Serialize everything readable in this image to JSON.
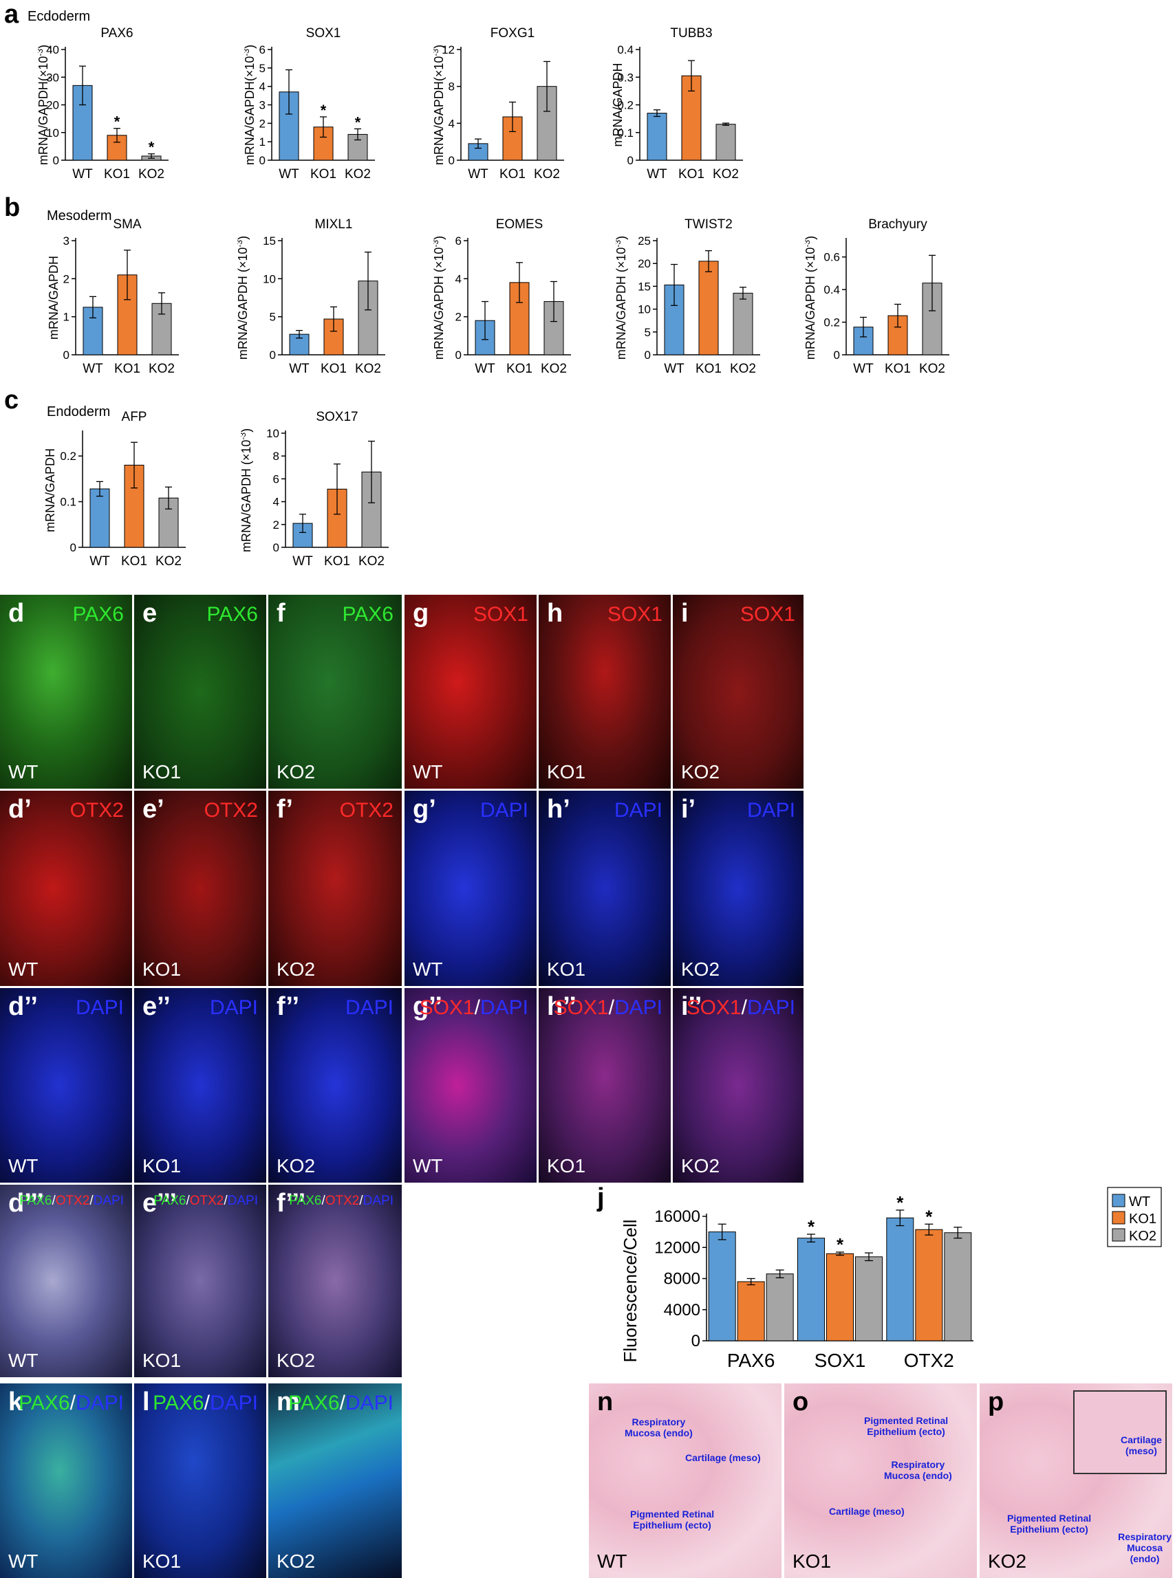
{
  "colors": {
    "WT": "#5b9bd5",
    "KO1": "#ed7d31",
    "KO2": "#a5a5a5",
    "green": "#2ee830",
    "red": "#ff2a2a",
    "blue": "#2a30ff",
    "annotation": "#1a22d8"
  },
  "sections": {
    "a": {
      "letter": "a",
      "germ": "Ecdoderm"
    },
    "b": {
      "letter": "b",
      "germ": "Mesoderm"
    },
    "c": {
      "letter": "c",
      "germ": "Endoderm"
    }
  },
  "chart_data": [
    {
      "id": "PAX6",
      "type": "bar",
      "title": "PAX6",
      "ylabel": "mRNA/GAPDH(×10",
      "yexp": "-3",
      "ylabel_end": ")",
      "categories": [
        "WT",
        "KO1",
        "KO2"
      ],
      "values": [
        27,
        9,
        1.5
      ],
      "errors": [
        7,
        2.5,
        0.8
      ],
      "significance": [
        "",
        "*",
        "*"
      ],
      "ylim": [
        0,
        40
      ],
      "yticks": [
        "0",
        "10",
        "20",
        "30",
        "40"
      ]
    },
    {
      "id": "SOX1",
      "type": "bar",
      "title": "SOX1",
      "ylabel": "mRNA/GAPDH(×10",
      "yexp": "-3",
      "ylabel_end": ")",
      "categories": [
        "WT",
        "KO1",
        "KO2"
      ],
      "values": [
        3.7,
        1.8,
        1.4
      ],
      "errors": [
        1.2,
        0.55,
        0.3
      ],
      "significance": [
        "",
        "*",
        "*"
      ],
      "ylim": [
        0,
        6
      ],
      "yticks": [
        "0",
        "1",
        "2",
        "3",
        "4",
        "5",
        "6"
      ]
    },
    {
      "id": "FOXG1",
      "type": "bar",
      "title": "FOXG1",
      "ylabel": "mRNA/GAPDH(×10",
      "yexp": "-3",
      "ylabel_end": ")",
      "categories": [
        "WT",
        "KO1",
        "KO2"
      ],
      "values": [
        1.8,
        4.7,
        8
      ],
      "errors": [
        0.5,
        1.6,
        2.7
      ],
      "significance": [
        "",
        "",
        ""
      ],
      "ylim": [
        0,
        12
      ],
      "yticks": [
        "0",
        "4",
        "8",
        "12"
      ]
    },
    {
      "id": "TUBB3",
      "type": "bar",
      "title": "TUBB3",
      "ylabel": "mRNA/GAPDH",
      "yexp": "",
      "ylabel_end": "",
      "categories": [
        "WT",
        "KO1",
        "KO2"
      ],
      "values": [
        0.17,
        0.305,
        0.13
      ],
      "errors": [
        0.012,
        0.055,
        0.004
      ],
      "significance": [
        "",
        "",
        ""
      ],
      "ylim": [
        0,
        0.4
      ],
      "yticks": [
        "0",
        "0.1",
        "0.2",
        "0.3",
        "0.4"
      ]
    },
    {
      "id": "SMA",
      "type": "bar",
      "title": "SMA",
      "ylabel": "mRNA/GAPDH",
      "yexp": "",
      "ylabel_end": "",
      "categories": [
        "WT",
        "KO1",
        "KO2"
      ],
      "values": [
        1.25,
        2.1,
        1.35
      ],
      "errors": [
        0.28,
        0.65,
        0.28
      ],
      "significance": [
        "",
        "",
        ""
      ],
      "ylim": [
        0,
        3
      ],
      "yticks": [
        "0",
        "1",
        "2",
        "3"
      ]
    },
    {
      "id": "MIXL1",
      "type": "bar",
      "title": "MIXL1",
      "ylabel": "mRNA/GAPDH (×10",
      "yexp": "-3",
      "ylabel_end": ")",
      "categories": [
        "WT",
        "KO1",
        "KO2"
      ],
      "values": [
        2.7,
        4.7,
        9.7
      ],
      "errors": [
        0.5,
        1.6,
        3.8
      ],
      "significance": [
        "",
        "",
        ""
      ],
      "ylim": [
        0,
        15
      ],
      "yticks": [
        "0",
        "5",
        "10",
        "15"
      ]
    },
    {
      "id": "EOMES",
      "type": "bar",
      "title": "EOMES",
      "ylabel": "mRNA/GAPDH (×10",
      "yexp": "-3",
      "ylabel_end": ")",
      "categories": [
        "WT",
        "KO1",
        "KO2"
      ],
      "values": [
        1.8,
        3.8,
        2.8
      ],
      "errors": [
        1.0,
        1.05,
        1.05
      ],
      "significance": [
        "",
        "",
        ""
      ],
      "ylim": [
        0,
        6
      ],
      "yticks": [
        "0",
        "2",
        "4",
        "6"
      ]
    },
    {
      "id": "TWIST2",
      "type": "bar",
      "title": "TWIST2",
      "ylabel": "mRNA/GAPDH (×10",
      "yexp": "-3",
      "ylabel_end": ")",
      "categories": [
        "WT",
        "KO1",
        "KO2"
      ],
      "values": [
        15.3,
        20.5,
        13.5
      ],
      "errors": [
        4.5,
        2.3,
        1.3
      ],
      "significance": [
        "",
        "",
        ""
      ],
      "ylim": [
        0,
        25
      ],
      "yticks": [
        "0",
        "5",
        "10",
        "15",
        "20",
        "25"
      ]
    },
    {
      "id": "Brachyury",
      "type": "bar",
      "title": "Brachyury",
      "ylabel": "mRNA/GAPDH (×10",
      "yexp": "-3",
      "ylabel_end": ")",
      "categories": [
        "WT",
        "KO1",
        "KO2"
      ],
      "values": [
        0.17,
        0.24,
        0.44
      ],
      "errors": [
        0.06,
        0.07,
        0.17
      ],
      "significance": [
        "",
        "",
        ""
      ],
      "ylim": [
        0,
        0.7
      ],
      "yticks": [
        "0",
        "0.2",
        "0.4",
        "0.6"
      ]
    },
    {
      "id": "AFP",
      "type": "bar",
      "title": "AFP",
      "ylabel": "mRNA/GAPDH",
      "yexp": "",
      "ylabel_end": "",
      "categories": [
        "WT",
        "KO1",
        "KO2"
      ],
      "values": [
        0.128,
        0.18,
        0.108
      ],
      "errors": [
        0.016,
        0.05,
        0.024
      ],
      "significance": [
        "",
        "",
        ""
      ],
      "ylim": [
        0,
        0.25
      ],
      "yticks": [
        "0",
        "0.1",
        "0.2"
      ]
    },
    {
      "id": "SOX17",
      "type": "bar",
      "title": "SOX17",
      "ylabel": "mRNA/GAPDH (×10",
      "yexp": "-3",
      "ylabel_end": ")",
      "categories": [
        "WT",
        "KO1",
        "KO2"
      ],
      "values": [
        2.1,
        5.1,
        6.6
      ],
      "errors": [
        0.8,
        2.2,
        2.7
      ],
      "significance": [
        "",
        "",
        ""
      ],
      "ylim": [
        0,
        10
      ],
      "yticks": [
        "0",
        "2",
        "4",
        "6",
        "8",
        "10"
      ]
    },
    {
      "id": "j",
      "type": "bar",
      "title": "",
      "ylabel": "Fluorescence/Cell",
      "yexp": "",
      "ylabel_end": "",
      "categories": [
        "PAX6",
        "SOX1",
        "OTX2"
      ],
      "series": [
        {
          "name": "WT",
          "values": [
            14000,
            13200,
            15800
          ],
          "errors": [
            1000,
            500,
            1000
          ]
        },
        {
          "name": "KO1",
          "values": [
            7600,
            11200,
            14300
          ],
          "errors": [
            400,
            200,
            700
          ]
        },
        {
          "name": "KO2",
          "values": [
            8600,
            10800,
            13900
          ],
          "errors": [
            500,
            500,
            700
          ]
        }
      ],
      "significance": [
        [
          "",
          "*",
          "*"
        ],
        [
          "",
          "*",
          "*"
        ],
        [
          "",
          "",
          ""
        ]
      ],
      "ylim": [
        0,
        16000
      ],
      "yticks": [
        "0",
        "4000",
        "8000",
        "12000",
        "16000"
      ],
      "legend": "top-right"
    }
  ],
  "panel_j_letter": "j",
  "panels": [
    {
      "id": "d",
      "tag": "d",
      "label": [
        {
          "t": "PAX6",
          "c": "green"
        }
      ],
      "cond": "WT",
      "bg": "radial-gradient(ellipse at 40% 40%, #3fae30 0%, #1f6a18 45%, #0a2507 100%)"
    },
    {
      "id": "e",
      "tag": "e",
      "label": [
        {
          "t": "PAX6",
          "c": "green"
        }
      ],
      "cond": "KO1",
      "bg": "radial-gradient(ellipse at 50% 50%, #1e6a1a 0%, #134512 60%, #0a260a 100%)"
    },
    {
      "id": "f",
      "tag": "f",
      "label": [
        {
          "t": "PAX6",
          "c": "green"
        }
      ],
      "cond": "KO2",
      "bg": "radial-gradient(ellipse at 45% 45%, #24752a 0%, #165018 60%, #0a260a 100%)"
    },
    {
      "id": "g",
      "tag": "g",
      "label": [
        {
          "t": "SOX1",
          "c": "red"
        }
      ],
      "cond": "WT",
      "bg": "radial-gradient(ellipse at 40% 45%, #d01a1a 0%, #801010 50%, #300505 100%)"
    },
    {
      "id": "h",
      "tag": "h",
      "label": [
        {
          "t": "SOX1",
          "c": "red"
        }
      ],
      "cond": "KO1",
      "bg": "radial-gradient(ellipse at 50% 40%, #b01818 0%, #601010 50%, #200404 100%)"
    },
    {
      "id": "i",
      "tag": "i",
      "label": [
        {
          "t": "SOX1",
          "c": "red"
        }
      ],
      "cond": "KO2",
      "bg": "radial-gradient(ellipse at 50% 50%, #8a1818 0%, #5a1010 60%, #260606 100%)"
    },
    {
      "id": "d1",
      "tag": "d’",
      "label": [
        {
          "t": "OTX2",
          "c": "red"
        }
      ],
      "cond": "WT",
      "bg": "radial-gradient(ellipse at 40% 50%, #c01818 0%, #701010 55%, #280505 100%)"
    },
    {
      "id": "e1",
      "tag": "e’",
      "label": [
        {
          "t": "OTX2",
          "c": "red"
        }
      ],
      "cond": "KO1",
      "bg": "radial-gradient(ellipse at 50% 50%, #a01515 0%, #601010 55%, #250505 100%)"
    },
    {
      "id": "f1",
      "tag": "f’",
      "label": [
        {
          "t": "OTX2",
          "c": "red"
        }
      ],
      "cond": "KO2",
      "bg": "radial-gradient(ellipse at 50% 45%, #b01a1a 0%, #681010 55%, #250505 100%)"
    },
    {
      "id": "g1",
      "tag": "g’",
      "label": [
        {
          "t": "DAPI",
          "c": "blue"
        }
      ],
      "cond": "WT",
      "bg": "radial-gradient(ellipse at 45% 50%, #2535d8 0%, #101a88 55%, #05082e 100%)"
    },
    {
      "id": "h1",
      "tag": "h’",
      "label": [
        {
          "t": "DAPI",
          "c": "blue"
        }
      ],
      "cond": "KO1",
      "bg": "radial-gradient(ellipse at 50% 50%, #1f2cc0 0%, #0d1670 55%, #040726 100%)"
    },
    {
      "id": "i1",
      "tag": "i’",
      "label": [
        {
          "t": "DAPI",
          "c": "blue"
        }
      ],
      "cond": "KO2",
      "bg": "radial-gradient(ellipse at 50% 50%, #2030c8 0%, #0e1775 55%, #040726 100%)"
    },
    {
      "id": "d2",
      "tag": "d’’",
      "label": [
        {
          "t": "DAPI",
          "c": "blue"
        }
      ],
      "cond": "WT",
      "bg": "radial-gradient(ellipse at 45% 50%, #2232d0 0%, #0f1980 55%, #05082a 100%)"
    },
    {
      "id": "e2",
      "tag": "e’’",
      "label": [
        {
          "t": "DAPI",
          "c": "blue"
        }
      ],
      "cond": "KO1",
      "bg": "radial-gradient(ellipse at 50% 50%, #2232d0 0%, #0f1980 55%, #05082a 100%)"
    },
    {
      "id": "f2",
      "tag": "f’’",
      "label": [
        {
          "t": "DAPI",
          "c": "blue"
        }
      ],
      "cond": "KO2",
      "bg": "radial-gradient(ellipse at 50% 50%, #2535d8 0%, #101a88 55%, #05082a 100%)"
    },
    {
      "id": "g2",
      "tag": "g’’",
      "label": [
        {
          "t": "SOX1",
          "c": "red"
        },
        {
          "t": "/",
          "c": "white"
        },
        {
          "t": "DAPI",
          "c": "blue"
        }
      ],
      "cond": "WT",
      "bg": "radial-gradient(ellipse at 40% 50%, #c0209a 0%, #58207a 50%, #180a35 100%)"
    },
    {
      "id": "h2",
      "tag": "h’’",
      "label": [
        {
          "t": "SOX1",
          "c": "red"
        },
        {
          "t": "/",
          "c": "white"
        },
        {
          "t": "DAPI",
          "c": "blue"
        }
      ],
      "cond": "KO1",
      "bg": "radial-gradient(ellipse at 50% 45%, #8a2a8a 0%, #481a5a 55%, #140820 100%)"
    },
    {
      "id": "i2",
      "tag": "i’’",
      "label": [
        {
          "t": "SOX1",
          "c": "red"
        },
        {
          "t": "/",
          "c": "white"
        },
        {
          "t": "DAPI",
          "c": "blue"
        }
      ],
      "cond": "KO2",
      "bg": "radial-gradient(ellipse at 50% 50%, #7a2a90 0%, #421a60 55%, #140822 100%)"
    },
    {
      "id": "d3",
      "tag": "d’’’",
      "label": [
        {
          "t": "PAX6",
          "c": "green"
        },
        {
          "t": "/",
          "c": "white"
        },
        {
          "t": "OTX2",
          "c": "red"
        },
        {
          "t": "/",
          "c": "white"
        },
        {
          "t": "DAPI",
          "c": "blue"
        }
      ],
      "cond": "WT",
      "bg": "radial-gradient(ellipse at 40% 50%, #a8a8d0 0%, #5a5a98 45%, #1a1a38 100%)"
    },
    {
      "id": "e3",
      "tag": "e’’’",
      "label": [
        {
          "t": "PAX6",
          "c": "green"
        },
        {
          "t": "/",
          "c": "white"
        },
        {
          "t": "OTX2",
          "c": "red"
        },
        {
          "t": "/",
          "c": "white"
        },
        {
          "t": "DAPI",
          "c": "blue"
        }
      ],
      "cond": "KO1",
      "bg": "radial-gradient(ellipse at 50% 50%, #7a6aa8 0%, #3f3a72 55%, #121230 100%)"
    },
    {
      "id": "f3",
      "tag": "f’’’",
      "label": [
        {
          "t": "PAX6",
          "c": "green"
        },
        {
          "t": "/",
          "c": "white"
        },
        {
          "t": "OTX2",
          "c": "red"
        },
        {
          "t": "/",
          "c": "white"
        },
        {
          "t": "DAPI",
          "c": "blue"
        }
      ],
      "cond": "KO2",
      "bg": "radial-gradient(ellipse at 50% 50%, #8a6aa8 0%, #463a74 55%, #141230 100%)"
    },
    {
      "id": "k",
      "tag": "k",
      "label": [
        {
          "t": "PAX6",
          "c": "green"
        },
        {
          "t": "/",
          "c": "white"
        },
        {
          "t": "DAPI",
          "c": "blue"
        }
      ],
      "cond": "WT",
      "bg": "radial-gradient(ellipse at 45% 45%, #3ab0a0 0%, #1e6a9a 45%, #081a48 100%)"
    },
    {
      "id": "l",
      "tag": "l",
      "label": [
        {
          "t": "PAX6",
          "c": "green"
        },
        {
          "t": "/",
          "c": "white"
        },
        {
          "t": "DAPI",
          "c": "blue"
        }
      ],
      "cond": "KO1",
      "bg": "radial-gradient(ellipse at 45% 40%, #2048c8 0%, #10288a 55%, #040a28 100%)"
    },
    {
      "id": "m",
      "tag": "m",
      "label": [
        {
          "t": "PAX6",
          "c": "green"
        },
        {
          "t": "/",
          "c": "white"
        },
        {
          "t": "DAPI",
          "c": "blue"
        }
      ],
      "cond": "KO2",
      "bg": "linear-gradient(160deg, #102a40 0%, #2aa0b8 35%, #1a70c0 55%, #060e26 100%)"
    }
  ],
  "he_panels": [
    {
      "id": "n",
      "tag": "n",
      "cond": "WT",
      "annotations": [
        "Respiratory\nMucosa (endo)",
        "Cartilage (meso)",
        "Pigmented Retinal\nEpithelium (ecto)"
      ]
    },
    {
      "id": "o",
      "tag": "o",
      "cond": "KO1",
      "annotations": [
        "Pigmented Retinal\nEpithelium (ecto)",
        "Respiratory\nMucosa (endo)",
        "Cartilage (meso)"
      ]
    },
    {
      "id": "p",
      "tag": "p",
      "cond": "KO2",
      "annotations": [
        "Cartilage\n(meso)",
        "Pigmented Retinal\nEpithelium (ecto)",
        "Respiratory\nMucosa (endo)"
      ]
    }
  ]
}
